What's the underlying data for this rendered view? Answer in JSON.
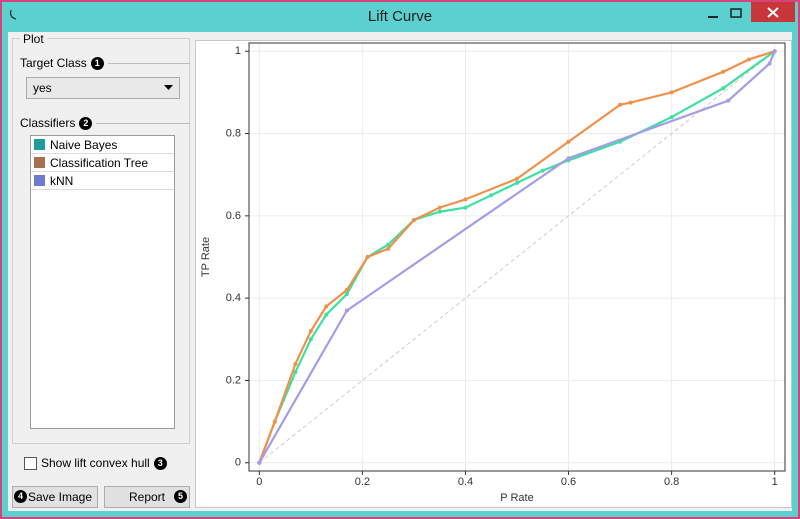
{
  "window": {
    "title": "Lift Curve"
  },
  "sidebar": {
    "plot_box": "Plot",
    "target_class": {
      "label": "Target Class",
      "badge": "1",
      "selected": "yes"
    },
    "classifiers": {
      "label": "Classifiers",
      "badge": "2"
    },
    "convex_hull": {
      "label": "Show lift convex hull",
      "badge": "3",
      "checked": false
    },
    "save_image": {
      "label": "Save Image",
      "badge": "4"
    },
    "report": {
      "label": "Report",
      "badge": "5"
    }
  },
  "chart_data": {
    "type": "line",
    "xlabel": "P Rate",
    "ylabel": "TP Rate",
    "xlim": [
      -0.02,
      1.02
    ],
    "ylim": [
      -0.02,
      1.02
    ],
    "xticks": [
      0,
      0.2,
      0.4,
      0.6,
      0.8,
      1
    ],
    "yticks": [
      0,
      0.2,
      0.4,
      0.6,
      0.8,
      1
    ],
    "grid": true,
    "series": [
      {
        "name": "Naive Bayes",
        "color": "#3ee0a0",
        "swatch_color": "#1f9e99",
        "x": [
          0,
          0.03,
          0.07,
          0.1,
          0.13,
          0.17,
          0.21,
          0.25,
          0.3,
          0.35,
          0.4,
          0.45,
          0.5,
          0.55,
          0.6,
          0.7,
          0.8,
          0.9,
          1
        ],
        "values": [
          0,
          0.1,
          0.22,
          0.3,
          0.36,
          0.41,
          0.5,
          0.53,
          0.59,
          0.61,
          0.62,
          0.65,
          0.68,
          0.71,
          0.735,
          0.78,
          0.84,
          0.91,
          1
        ]
      },
      {
        "name": "Classification Tree",
        "color": "#f0904a",
        "swatch_color": "#a7704f",
        "x": [
          0,
          0.03,
          0.07,
          0.1,
          0.13,
          0.17,
          0.21,
          0.25,
          0.3,
          0.35,
          0.4,
          0.5,
          0.6,
          0.7,
          0.72,
          0.8,
          0.9,
          0.95,
          1
        ],
        "values": [
          0,
          0.1,
          0.24,
          0.32,
          0.38,
          0.42,
          0.5,
          0.52,
          0.59,
          0.62,
          0.64,
          0.69,
          0.78,
          0.87,
          0.875,
          0.9,
          0.95,
          0.98,
          1
        ]
      },
      {
        "name": "kNN",
        "color": "#a49ce8",
        "swatch_color": "#6f79d1",
        "x": [
          0,
          0.17,
          0.6,
          0.91,
          0.99,
          1
        ],
        "values": [
          0,
          0.37,
          0.74,
          0.88,
          0.97,
          1
        ]
      }
    ]
  }
}
